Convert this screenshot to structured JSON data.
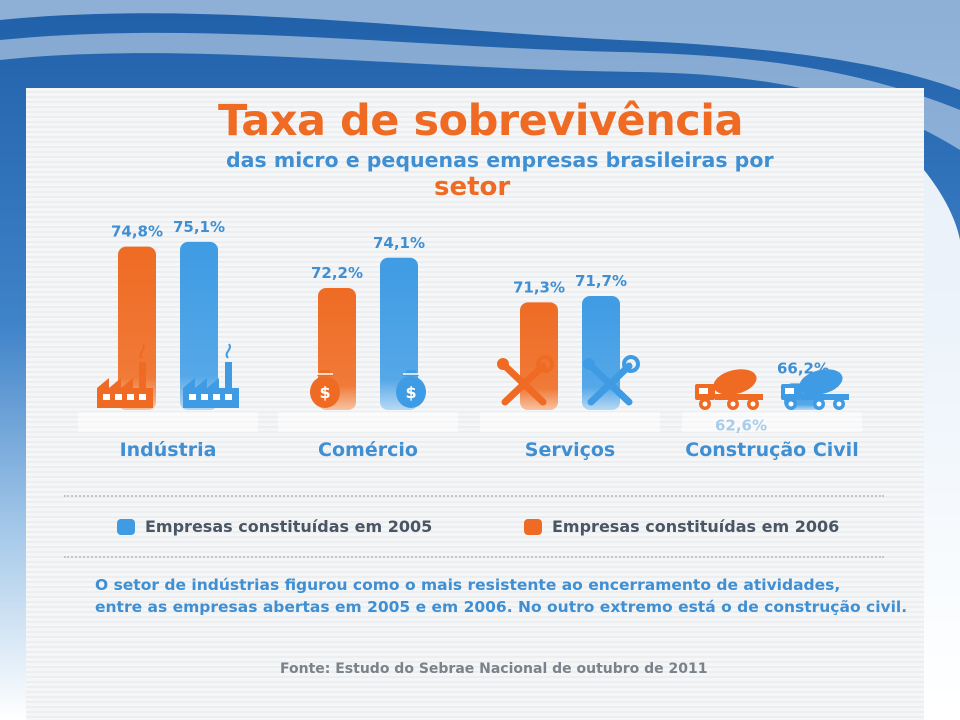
{
  "header": {
    "title": "Taxa de sobrevivência",
    "subtitle": "das micro e pequenas empresas brasileiras por",
    "subtitle_emphasis": "setor"
  },
  "colors": {
    "series_2005": "#3f9be3",
    "series_2006": "#ef6b24",
    "text_blue": "#3f8fd2"
  },
  "chart_data": {
    "type": "bar",
    "categories": [
      "Indústria",
      "Comércio",
      "Serviços",
      "Construção Civil"
    ],
    "category_icons": [
      "factory-icon",
      "money-bag-icon",
      "tools-icon",
      "cement-truck-icon"
    ],
    "series": [
      {
        "name": "Empresas constituídas em 2006",
        "color": "#ef6b24",
        "values": [
          74.8,
          72.2,
          71.3,
          62.6
        ],
        "labels": [
          "74,8%",
          "72,2%",
          "71,3%",
          "62,6%"
        ]
      },
      {
        "name": "Empresas constituídas em 2005",
        "color": "#3f9be3",
        "values": [
          75.1,
          74.1,
          71.7,
          66.2
        ],
        "labels": [
          "75,1%",
          "74,1%",
          "71,7%",
          "66,2%"
        ]
      }
    ],
    "title": "Taxa de sobrevivência",
    "grid": false,
    "legend_position": "bottom"
  },
  "legend": {
    "items": [
      {
        "label": "Empresas constituídas em 2005",
        "color": "#3f9be3"
      },
      {
        "label": "Empresas constituídas em 2006",
        "color": "#ef6b24"
      }
    ]
  },
  "note": {
    "line1": "O setor de indústrias figurou como o mais resistente ao encerramento de atividades,",
    "line2": "entre as empresas abertas em 2005 e em 2006. No outro extremo está o de construção civil."
  },
  "source": "Fonte: Estudo do Sebrae Nacional de outubro de 2011"
}
